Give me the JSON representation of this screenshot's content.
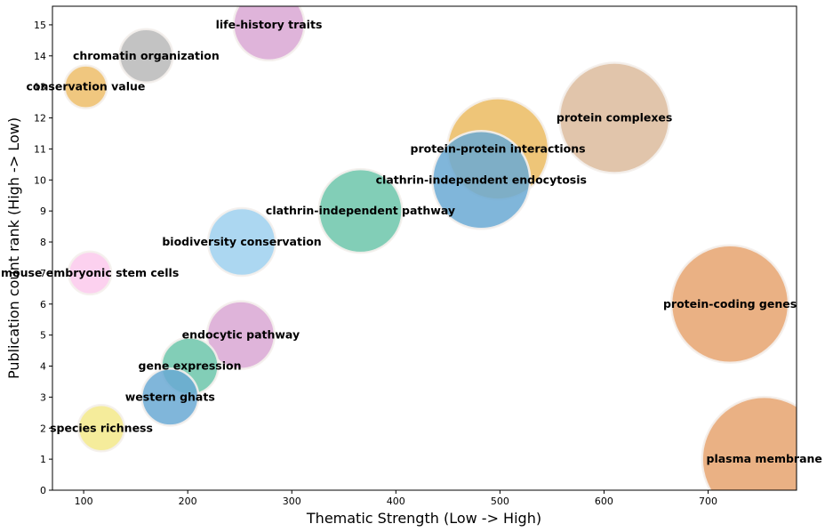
{
  "chart_data": {
    "type": "scatter",
    "subtype": "bubble",
    "title": "",
    "xlabel": "Thematic Strength (Low -> High)",
    "ylabel": "Publication count rank (High -> Low)",
    "xlim": [
      70,
      785
    ],
    "ylim": [
      0,
      15.6
    ],
    "xticks": [
      100,
      200,
      300,
      400,
      500,
      600,
      700
    ],
    "yticks": [
      0,
      1,
      2,
      3,
      4,
      5,
      6,
      7,
      8,
      9,
      10,
      11,
      12,
      13,
      14,
      15
    ],
    "grid": false,
    "points": [
      {
        "label": "life-history traits",
        "x": 278,
        "y": 15,
        "size": 40,
        "color": "#d9a7d4"
      },
      {
        "label": "chromatin organization",
        "x": 160,
        "y": 14,
        "size": 30,
        "color": "#b8b8b8"
      },
      {
        "label": "conservation value",
        "x": 102,
        "y": 13,
        "size": 24,
        "color": "#edbd68"
      },
      {
        "label": "protein complexes",
        "x": 610,
        "y": 12,
        "size": 62,
        "color": "#dcbb9c"
      },
      {
        "label": "protein-protein interactions",
        "x": 498,
        "y": 11,
        "size": 57,
        "color": "#ebbb60"
      },
      {
        "label": "clathrin-independent endocytosis",
        "x": 482,
        "y": 10,
        "size": 55,
        "color": "#6aa9d4"
      },
      {
        "label": "clathrin-independent pathway",
        "x": 366,
        "y": 9,
        "size": 47,
        "color": "#6cc6aa"
      },
      {
        "label": "biodiversity conservation",
        "x": 252,
        "y": 8,
        "size": 38,
        "color": "#9dd0ef"
      },
      {
        "label": "mouse embryonic stem cells",
        "x": 106,
        "y": 7,
        "size": 24,
        "color": "#fbc9ec"
      },
      {
        "label": "protein-coding genes",
        "x": 721,
        "y": 6,
        "size": 66,
        "color": "#e6a36e"
      },
      {
        "label": "endocytic pathway",
        "x": 251,
        "y": 5,
        "size": 38,
        "color": "#d9a7d4"
      },
      {
        "label": "gene expression",
        "x": 202,
        "y": 4,
        "size": 32,
        "color": "#6cc6aa"
      },
      {
        "label": "western ghats",
        "x": 183,
        "y": 3,
        "size": 32,
        "color": "#6aa9d4"
      },
      {
        "label": "species richness",
        "x": 117,
        "y": 2,
        "size": 26,
        "color": "#f3e98a"
      },
      {
        "label": "plasma membrane",
        "x": 754,
        "y": 1,
        "size": 70,
        "color": "#e6a36e"
      }
    ]
  }
}
